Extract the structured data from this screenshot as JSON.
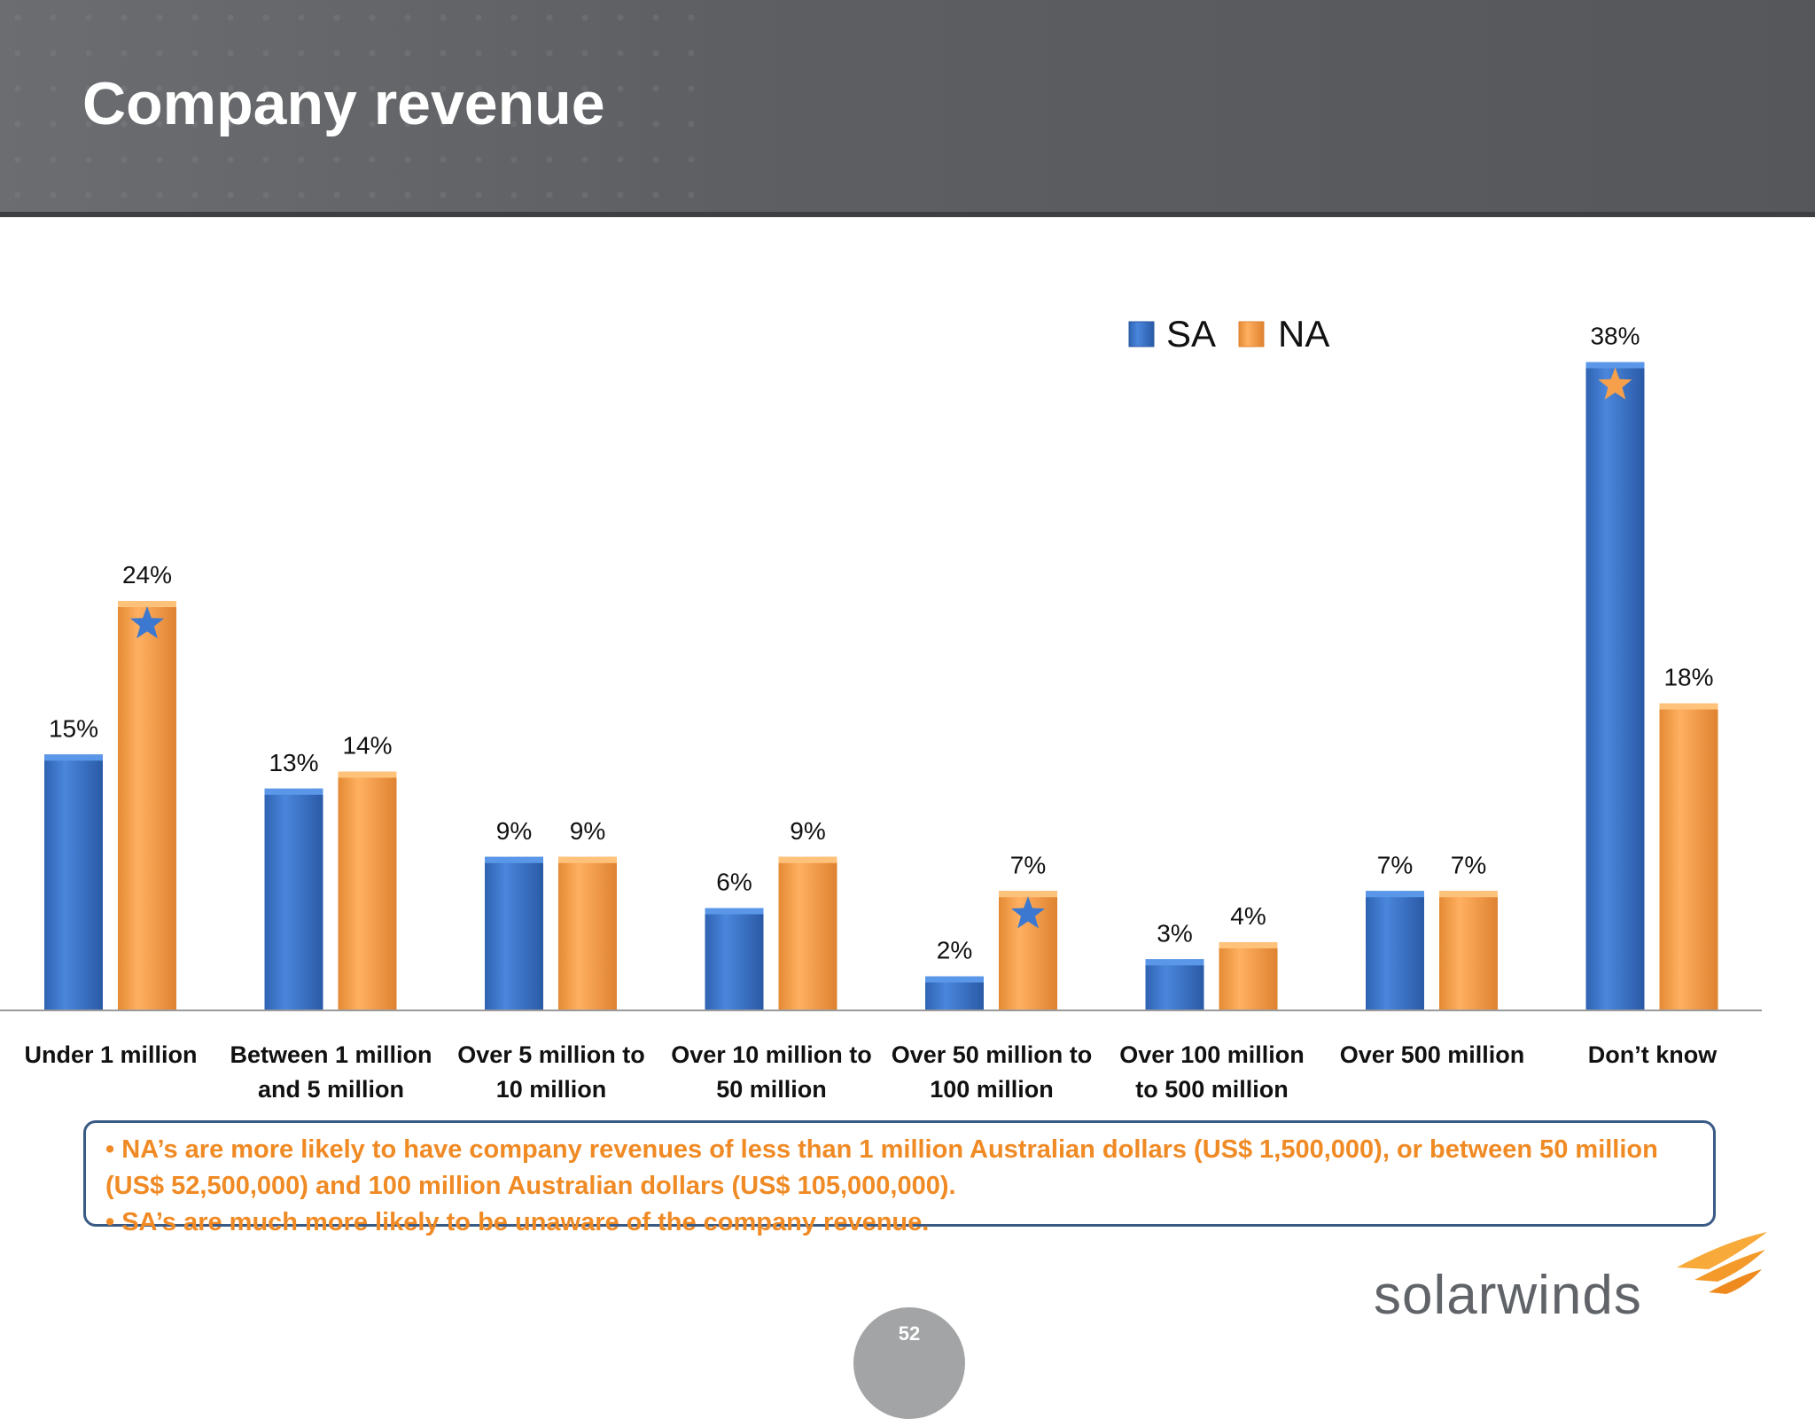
{
  "header": {
    "title": "Company revenue"
  },
  "notes": [
    "• NA’s are more likely to have company revenues  of less than 1 million Australian dollars (US$ 1,500,000), or between 50 million (US$ 52,500,000) and 100 million Australian dollars (US$ 105,000,000).",
    "• SA’s are much more likely to be unaware of the company revenue."
  ],
  "footer": {
    "logo_text": "solarwinds",
    "page_number": "52"
  },
  "colors": {
    "SA": "#3c78d0",
    "NA": "#f7a04c",
    "header": "#5d5f63",
    "note_text": "#f08a24"
  },
  "chart_data": {
    "type": "bar",
    "title": "",
    "xlabel": "",
    "ylabel": "",
    "ylim": [
      0,
      40
    ],
    "legend": "top-center",
    "grid": false,
    "categories": [
      [
        "Under  1 million"
      ],
      [
        "Between  1 million",
        "and  5 million"
      ],
      [
        "Over  5 million to",
        "10 million"
      ],
      [
        "Over  10 million to",
        "50 million"
      ],
      [
        "Over  50 million to",
        "100 million"
      ],
      [
        "Over  100 million",
        "to  500 million"
      ],
      [
        "Over  500 million"
      ],
      [
        "Don’t know"
      ]
    ],
    "series": [
      {
        "name": "SA",
        "values": [
          15,
          13,
          9,
          6,
          2,
          3,
          7,
          38
        ],
        "labels": [
          "15%",
          "13%",
          "9%",
          "6%",
          "2%",
          "3%",
          "7%",
          "38%"
        ]
      },
      {
        "name": "NA",
        "values": [
          24,
          14,
          9,
          9,
          7,
          4,
          7,
          18
        ],
        "labels": [
          "24%",
          "14%",
          "9%",
          "9%",
          "7%",
          "4%",
          "7%",
          "18%"
        ]
      }
    ],
    "annotations": [
      {
        "type": "star-icon",
        "series": "NA",
        "category_index": 0,
        "color": "#3c78d0"
      },
      {
        "type": "star-icon",
        "series": "NA",
        "category_index": 4,
        "color": "#3c78d0"
      },
      {
        "type": "star-icon",
        "series": "SA",
        "category_index": 7,
        "color": "#f7a04c"
      }
    ]
  }
}
